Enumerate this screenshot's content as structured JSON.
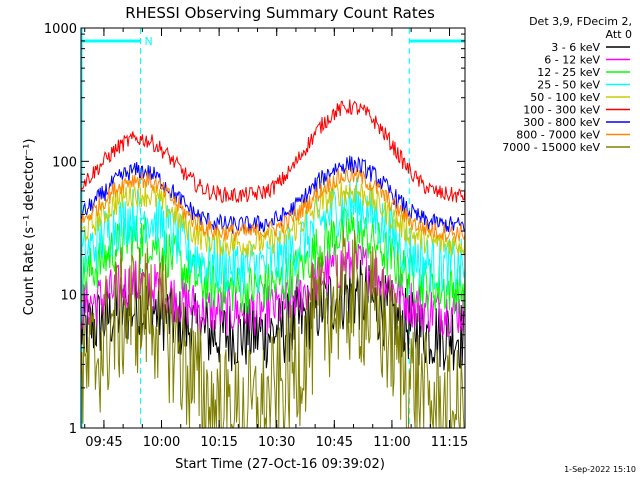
{
  "chart_data": {
    "type": "line",
    "title": "RHESSI Observing Summary Count Rates",
    "xlabel": "Start Time (27-Oct-16 09:39:02)",
    "ylabel": "Count Rate (s⁻¹ detector⁻¹)",
    "xscale": "time (minutes after start)",
    "yscale": "log",
    "xlim": [
      0,
      100
    ],
    "ylim": [
      1,
      1000
    ],
    "x_ticks": [
      {
        "at": 5.97,
        "label": "09:45"
      },
      {
        "at": 20.97,
        "label": "10:00"
      },
      {
        "at": 35.97,
        "label": "10:15"
      },
      {
        "at": 50.97,
        "label": "10:30"
      },
      {
        "at": 65.97,
        "label": "10:45"
      },
      {
        "at": 80.97,
        "label": "11:00"
      },
      {
        "at": 95.97,
        "label": "11:15"
      }
    ],
    "y_ticks": [
      {
        "at": 1,
        "label": "1"
      },
      {
        "at": 10,
        "label": "10"
      },
      {
        "at": 100,
        "label": "100"
      },
      {
        "at": 1000,
        "label": "1000"
      }
    ],
    "legend": {
      "position": "right",
      "header": [
        "Det 3,9, FDecim 2,",
        "Att 0"
      ]
    },
    "annotation": "N",
    "footer": "1-Sep-2022 15:10",
    "series": [
      {
        "name": "3 - 6 keV",
        "color": "#000000",
        "base": 5.0,
        "peak1": 8,
        "peak2": 10,
        "noise": 0.32
      },
      {
        "name": "6 - 12 keV",
        "color": "#ff00ff",
        "base": 7.5,
        "peak1": 12,
        "peak2": 17,
        "noise": 0.22
      },
      {
        "name": "12 - 25 keV",
        "color": "#00ff00",
        "base": 11,
        "peak1": 27,
        "peak2": 30,
        "noise": 0.22
      },
      {
        "name": "25 - 50 keV",
        "color": "#00ffff",
        "base": 16,
        "peak1": 40,
        "peak2": 47,
        "noise": 0.25
      },
      {
        "name": "50 - 100 keV",
        "color": "#cccc00",
        "base": 24,
        "peak1": 58,
        "peak2": 60,
        "noise": 0.12
      },
      {
        "name": "100 - 300 keV",
        "color": "#ff0000",
        "base": 55,
        "peak1": 148,
        "peak2": 255,
        "noise": 0.07
      },
      {
        "name": "300 - 800 keV",
        "color": "#0000ff",
        "base": 33,
        "peak1": 85,
        "peak2": 95,
        "noise": 0.08
      },
      {
        "name": "800 - 7000 keV",
        "color": "#ff8800",
        "base": 29,
        "peak1": 74,
        "peak2": 78,
        "noise": 0.08
      },
      {
        "name": "7000 - 15000 keV",
        "color": "#808000",
        "base": 1.2,
        "peak1": 8,
        "peak2": 9.5,
        "noise": 0.6
      }
    ],
    "observing_intervals": [
      {
        "start": 0,
        "end": 15.5
      },
      {
        "start": 85.5,
        "end": 100
      }
    ],
    "markers": [
      15.5,
      85.5,
      100
    ]
  }
}
